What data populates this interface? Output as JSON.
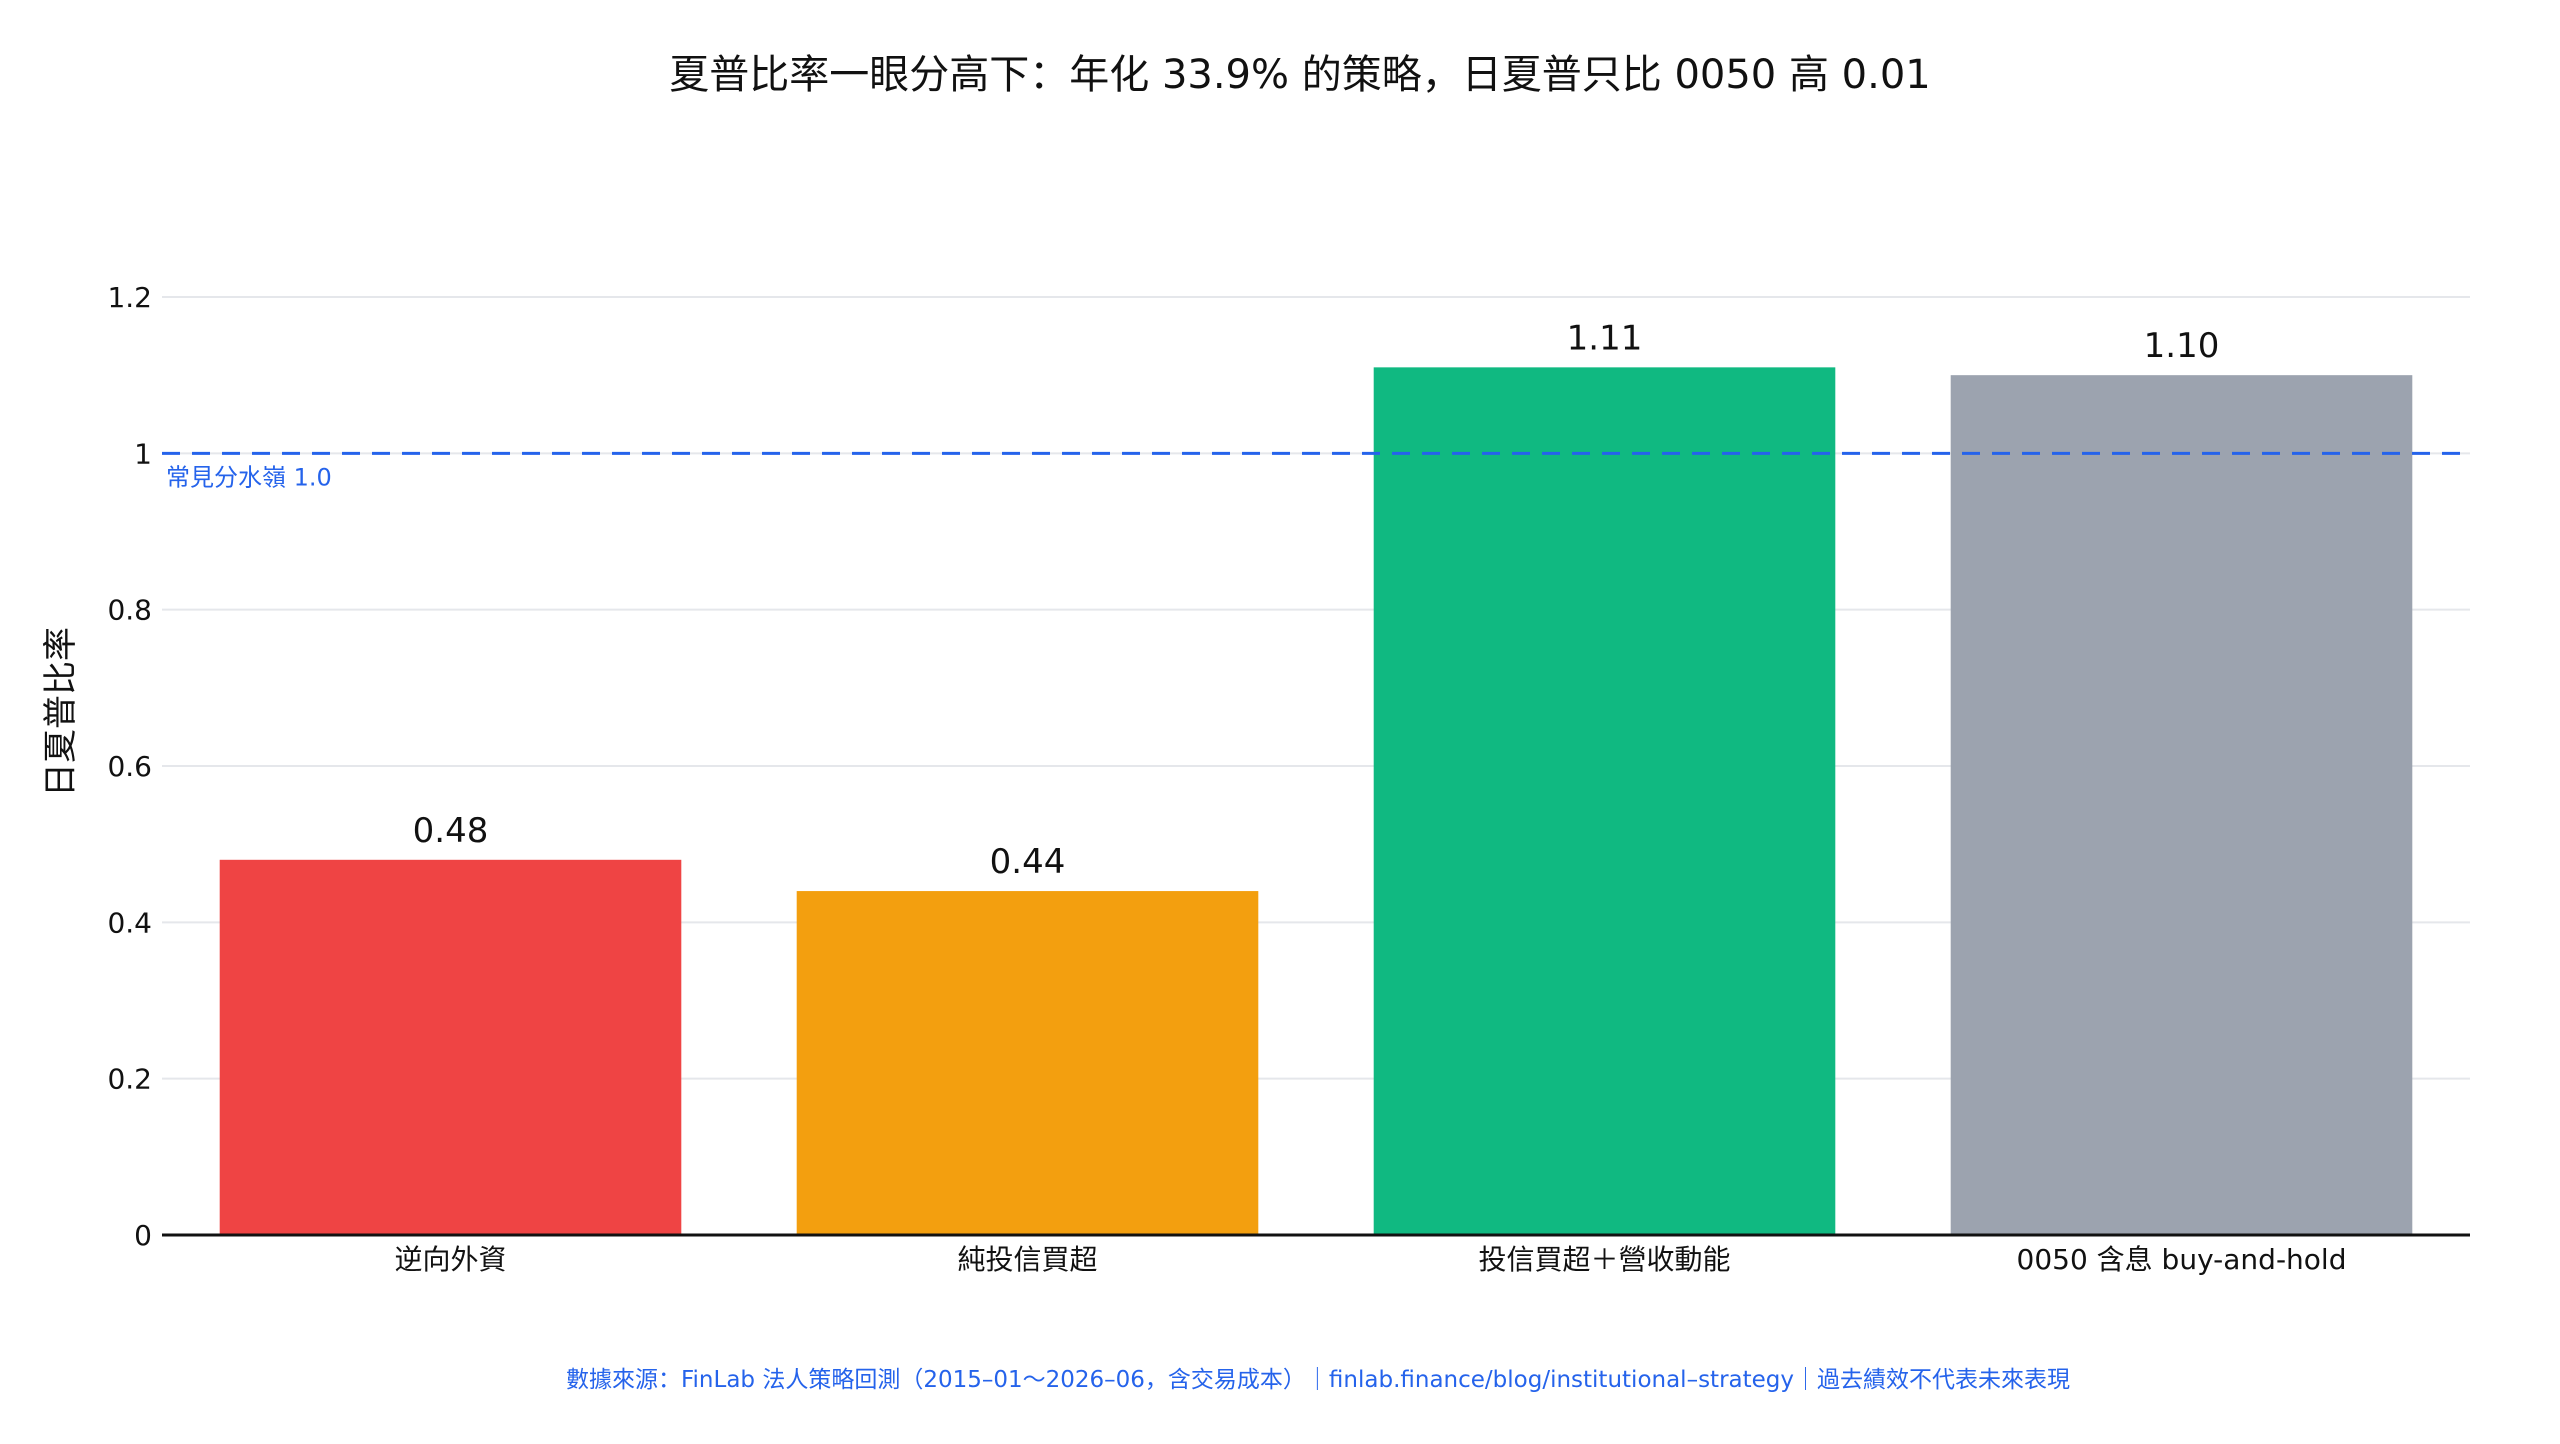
{
  "chart_data": {
    "type": "bar",
    "title": "夏普比率一眼分高下：年化 33.9% 的策略，日夏普只比 0050 高 0.01",
    "ylabel": "日夏普比率",
    "xlabel": "",
    "ylim": [
      0,
      1.2
    ],
    "yticks": [
      0,
      0.2,
      0.4,
      0.6,
      0.8,
      1,
      1.2
    ],
    "ytick_labels": [
      "0",
      "0.2",
      "0.4",
      "0.6",
      "0.8",
      "1",
      "1.2"
    ],
    "grid": true,
    "categories": [
      "逆向外資",
      "純投信買超",
      "投信買超＋營收動能",
      "0050 含息 buy-and-hold"
    ],
    "values": [
      0.48,
      0.44,
      1.11,
      1.1
    ],
    "value_labels": [
      "0.48",
      "0.44",
      "1.11",
      "1.10"
    ],
    "bar_colors": [
      "#ef4444",
      "#f39f0f",
      "#10b981",
      "#9ca3af"
    ],
    "reference_line": {
      "value": 1.0,
      "label": "常見分水嶺 1.0",
      "color": "#2563eb",
      "style": "dashed"
    },
    "footnote": "數據來源：FinLab 法人策略回測（2015–01～2026–06，含交易成本）｜finlab.finance/blog/institutional–strategy｜過去績效不代表未來表現"
  },
  "colors": {
    "axis": "#111111",
    "grid": "#e5e7eb",
    "footnote": "#2563eb",
    "text": "#111111"
  }
}
